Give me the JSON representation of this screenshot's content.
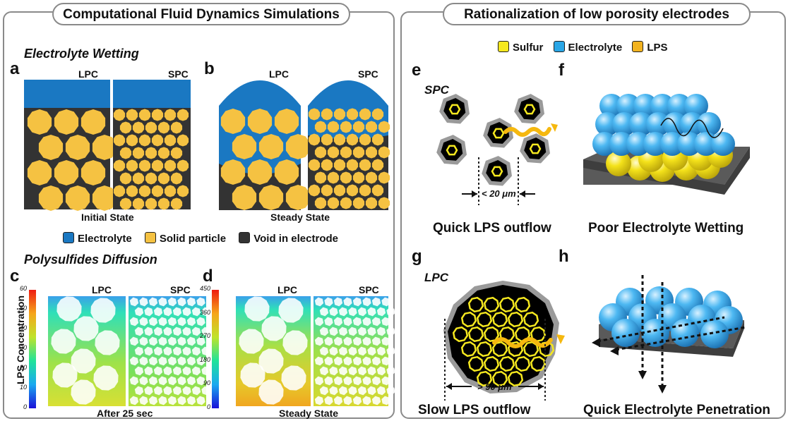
{
  "left_panel": {
    "title": "Computational Fluid Dynamics Simulations",
    "wetting": {
      "heading": "Electrolyte Wetting",
      "a": {
        "letter": "a",
        "lpc": "LPC",
        "spc": "SPC",
        "caption": "Initial State"
      },
      "b": {
        "letter": "b",
        "lpc": "LPC",
        "spc": "SPC",
        "caption": "Steady State"
      },
      "legend": [
        {
          "label": "Electrolyte",
          "color": "#1a78c2"
        },
        {
          "label": "Solid particle",
          "color": "#f5c242"
        },
        {
          "label": "Void in electrode",
          "color": "#333333"
        }
      ]
    },
    "diffusion": {
      "heading": "Polysulfides Diffusion",
      "axis_label": "LPS Concentration",
      "c": {
        "letter": "c",
        "lpc": "LPC",
        "spc": "SPC",
        "caption": "After 25 sec",
        "ticks": [
          "60",
          "50",
          "40",
          "30",
          "20",
          "10",
          "0"
        ]
      },
      "d": {
        "letter": "d",
        "lpc": "LPC",
        "spc": "SPC",
        "caption": "Steady State",
        "ticks": [
          "450",
          "360",
          "270",
          "180",
          "90",
          "0"
        ]
      }
    }
  },
  "right_panel": {
    "title": "Rationalization of low porosity electrodes",
    "legend": [
      {
        "label": "Sulfur",
        "color": "#f5e81f"
      },
      {
        "label": "Electrolyte",
        "color": "#2aa6e6"
      },
      {
        "label": "LPS",
        "color": "#f2b320"
      }
    ],
    "e": {
      "letter": "e",
      "tag": "SPC",
      "dimension": "< 20 μm",
      "caption": "Quick LPS outflow"
    },
    "f": {
      "letter": "f",
      "caption": "Poor Electrolyte Wetting"
    },
    "g": {
      "letter": "g",
      "tag": "LPC",
      "dimension": "> 90 μm",
      "caption": "Slow LPS outflow"
    },
    "h": {
      "letter": "h",
      "caption": "Quick Electrolyte Penetration"
    }
  }
}
